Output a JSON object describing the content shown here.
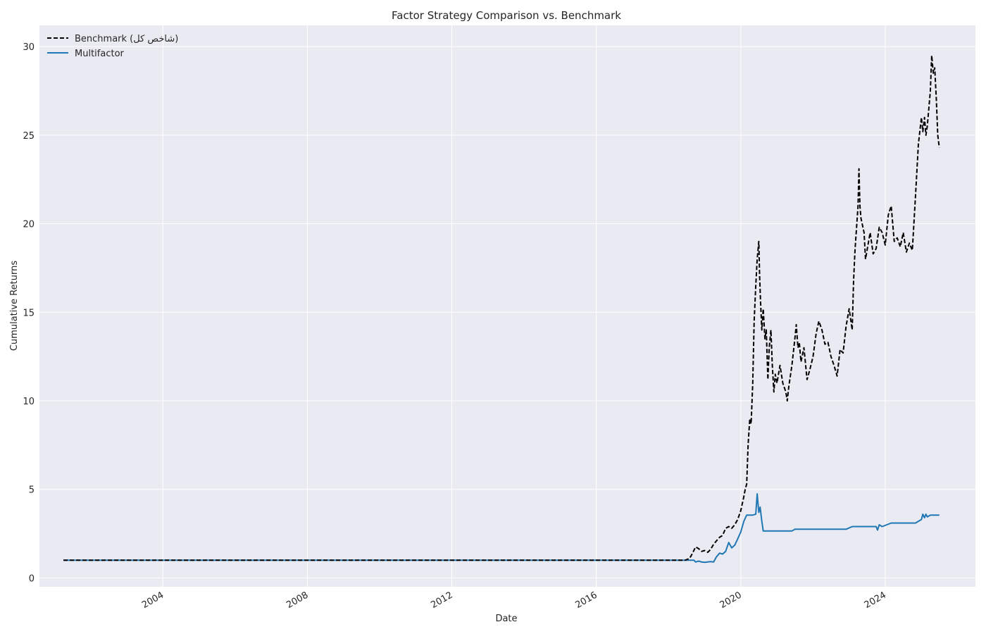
{
  "chart_data": {
    "type": "line",
    "title": "Factor Strategy Comparison vs. Benchmark",
    "xlabel": "Date",
    "ylabel": "Cumulative Returns",
    "xlim": [
      "2000-08-01",
      "2026-07-01"
    ],
    "ylim": [
      -0.5,
      31.2
    ],
    "x_ticks": [
      "2004-01-01",
      "2008-01-01",
      "2012-01-01",
      "2016-01-01",
      "2020-01-01",
      "2024-01-01"
    ],
    "x_tick_labels": [
      "2004",
      "2008",
      "2012",
      "2016",
      "2020",
      "2024"
    ],
    "y_ticks": [
      0,
      5,
      10,
      15,
      20,
      25,
      30
    ],
    "y_tick_labels": [
      "0",
      "5",
      "10",
      "15",
      "20",
      "25",
      "30"
    ],
    "grid": true,
    "legend_position": "top-left",
    "background": "#eaeaf2",
    "series": [
      {
        "name": "Benchmark (شاخص کل)",
        "style": "dashed",
        "color": "#000000",
        "points": [
          [
            "2001-04-01",
            1.0
          ],
          [
            "2018-06-15",
            1.0
          ],
          [
            "2018-08-01",
            1.1
          ],
          [
            "2018-09-01",
            1.4
          ],
          [
            "2018-10-01",
            1.75
          ],
          [
            "2018-11-01",
            1.65
          ],
          [
            "2018-12-01",
            1.5
          ],
          [
            "2019-01-01",
            1.55
          ],
          [
            "2019-02-01",
            1.45
          ],
          [
            "2019-03-01",
            1.6
          ],
          [
            "2019-04-01",
            1.9
          ],
          [
            "2019-05-01",
            2.1
          ],
          [
            "2019-06-01",
            2.3
          ],
          [
            "2019-07-01",
            2.4
          ],
          [
            "2019-08-01",
            2.8
          ],
          [
            "2019-09-01",
            2.9
          ],
          [
            "2019-10-01",
            2.8
          ],
          [
            "2019-11-01",
            3.0
          ],
          [
            "2019-12-01",
            3.3
          ],
          [
            "2020-01-01",
            3.8
          ],
          [
            "2020-02-01",
            4.6
          ],
          [
            "2020-02-15",
            5.0
          ],
          [
            "2020-03-01",
            5.3
          ],
          [
            "2020-03-15",
            7.5
          ],
          [
            "2020-04-01",
            9.0
          ],
          [
            "2020-04-15",
            8.7
          ],
          [
            "2020-05-01",
            11.0
          ],
          [
            "2020-05-15",
            14.5
          ],
          [
            "2020-06-01",
            16.5
          ],
          [
            "2020-06-15",
            18.0
          ],
          [
            "2020-07-01",
            19.0
          ],
          [
            "2020-07-10",
            17.0
          ],
          [
            "2020-07-20",
            15.5
          ],
          [
            "2020-08-01",
            14.0
          ],
          [
            "2020-08-15",
            15.2
          ],
          [
            "2020-09-01",
            13.5
          ],
          [
            "2020-09-15",
            14.0
          ],
          [
            "2020-10-01",
            11.2
          ],
          [
            "2020-10-15",
            13.0
          ],
          [
            "2020-11-01",
            14.0
          ],
          [
            "2020-11-15",
            12.0
          ],
          [
            "2020-12-01",
            10.5
          ],
          [
            "2020-12-15",
            11.5
          ],
          [
            "2021-01-01",
            11.0
          ],
          [
            "2021-02-01",
            12.0
          ],
          [
            "2021-03-01",
            11.0
          ],
          [
            "2021-04-01",
            10.5
          ],
          [
            "2021-04-15",
            10.0
          ],
          [
            "2021-05-01",
            10.8
          ],
          [
            "2021-06-01",
            12.0
          ],
          [
            "2021-07-01",
            13.5
          ],
          [
            "2021-07-15",
            14.3
          ],
          [
            "2021-08-01",
            13.0
          ],
          [
            "2021-08-15",
            13.3
          ],
          [
            "2021-09-01",
            12.2
          ],
          [
            "2021-10-01",
            13.0
          ],
          [
            "2021-11-01",
            11.2
          ],
          [
            "2021-12-01",
            11.8
          ],
          [
            "2022-01-01",
            12.5
          ],
          [
            "2022-02-01",
            13.8
          ],
          [
            "2022-03-01",
            14.5
          ],
          [
            "2022-04-01",
            14.0
          ],
          [
            "2022-05-01",
            13.2
          ],
          [
            "2022-06-01",
            13.3
          ],
          [
            "2022-07-01",
            12.5
          ],
          [
            "2022-08-01",
            12.0
          ],
          [
            "2022-09-01",
            11.4
          ],
          [
            "2022-10-01",
            12.9
          ],
          [
            "2022-11-01",
            12.7
          ],
          [
            "2022-12-01",
            14.2
          ],
          [
            "2023-01-01",
            15.2
          ],
          [
            "2023-02-01",
            14.0
          ],
          [
            "2023-02-15",
            16.8
          ],
          [
            "2023-03-01",
            18.5
          ],
          [
            "2023-04-01",
            21.0
          ],
          [
            "2023-04-10",
            23.1
          ],
          [
            "2023-04-20",
            21.0
          ],
          [
            "2023-05-01",
            20.3
          ],
          [
            "2023-06-01",
            19.5
          ],
          [
            "2023-06-15",
            18.0
          ],
          [
            "2023-07-01",
            18.5
          ],
          [
            "2023-08-01",
            19.5
          ],
          [
            "2023-09-01",
            18.3
          ],
          [
            "2023-10-01",
            18.6
          ],
          [
            "2023-11-01",
            19.8
          ],
          [
            "2023-12-01",
            19.5
          ],
          [
            "2024-01-01",
            18.8
          ],
          [
            "2024-02-01",
            20.5
          ],
          [
            "2024-03-01",
            21.0
          ],
          [
            "2024-04-01",
            19.0
          ],
          [
            "2024-05-01",
            19.2
          ],
          [
            "2024-06-01",
            18.7
          ],
          [
            "2024-07-01",
            19.5
          ],
          [
            "2024-08-01",
            18.4
          ],
          [
            "2024-09-01",
            18.9
          ],
          [
            "2024-10-01",
            18.5
          ],
          [
            "2024-11-01",
            21.5
          ],
          [
            "2024-12-01",
            24.5
          ],
          [
            "2025-01-01",
            26.0
          ],
          [
            "2025-01-15",
            25.2
          ],
          [
            "2025-02-01",
            26.0
          ],
          [
            "2025-02-15",
            25.0
          ],
          [
            "2025-03-01",
            25.5
          ],
          [
            "2025-04-01",
            27.5
          ],
          [
            "2025-04-15",
            29.5
          ],
          [
            "2025-05-01",
            28.5
          ],
          [
            "2025-05-15",
            28.8
          ],
          [
            "2025-06-01",
            27.0
          ],
          [
            "2025-06-15",
            25.0
          ],
          [
            "2025-07-01",
            24.3
          ]
        ]
      },
      {
        "name": "Multifactor",
        "style": "solid",
        "color": "#1f77b4",
        "points": [
          [
            "2001-04-01",
            1.0
          ],
          [
            "2018-09-15",
            1.0
          ],
          [
            "2018-10-01",
            0.9
          ],
          [
            "2018-11-01",
            0.95
          ],
          [
            "2018-12-01",
            0.9
          ],
          [
            "2019-01-01",
            0.88
          ],
          [
            "2019-02-01",
            0.9
          ],
          [
            "2019-03-01",
            0.92
          ],
          [
            "2019-04-01",
            0.9
          ],
          [
            "2019-05-01",
            1.2
          ],
          [
            "2019-06-01",
            1.4
          ],
          [
            "2019-07-01",
            1.35
          ],
          [
            "2019-08-01",
            1.5
          ],
          [
            "2019-09-01",
            2.0
          ],
          [
            "2019-10-01",
            1.7
          ],
          [
            "2019-11-01",
            1.85
          ],
          [
            "2019-12-01",
            2.2
          ],
          [
            "2020-01-01",
            2.6
          ],
          [
            "2020-02-01",
            3.2
          ],
          [
            "2020-03-01",
            3.55
          ],
          [
            "2020-04-01",
            3.55
          ],
          [
            "2020-05-01",
            3.55
          ],
          [
            "2020-06-01",
            3.6
          ],
          [
            "2020-06-15",
            4.75
          ],
          [
            "2020-07-01",
            3.7
          ],
          [
            "2020-07-15",
            4.0
          ],
          [
            "2020-08-01",
            3.2
          ],
          [
            "2020-08-15",
            2.65
          ],
          [
            "2021-06-01",
            2.65
          ],
          [
            "2021-07-01",
            2.75
          ],
          [
            "2022-12-01",
            2.75
          ],
          [
            "2023-02-01",
            2.9
          ],
          [
            "2023-10-01",
            2.9
          ],
          [
            "2023-10-15",
            2.7
          ],
          [
            "2023-11-01",
            3.0
          ],
          [
            "2023-12-01",
            2.9
          ],
          [
            "2024-03-01",
            3.1
          ],
          [
            "2024-11-01",
            3.1
          ],
          [
            "2025-01-01",
            3.3
          ],
          [
            "2025-01-15",
            3.6
          ],
          [
            "2025-02-01",
            3.4
          ],
          [
            "2025-02-15",
            3.6
          ],
          [
            "2025-03-01",
            3.45
          ],
          [
            "2025-04-01",
            3.55
          ],
          [
            "2025-07-01",
            3.55
          ]
        ]
      }
    ]
  }
}
